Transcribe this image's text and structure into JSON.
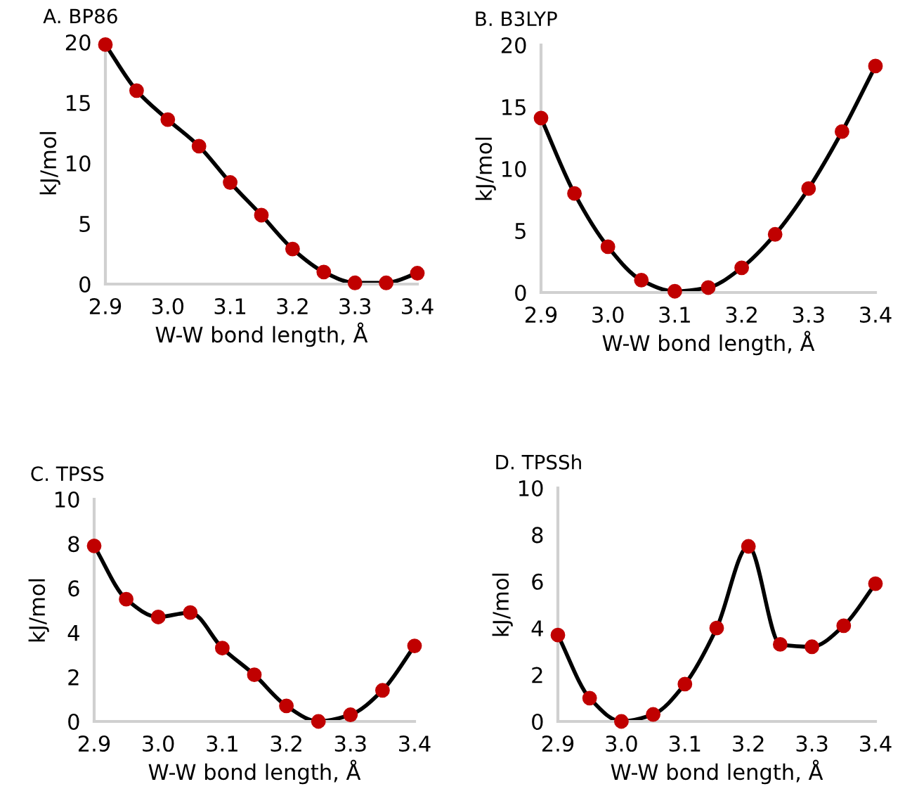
{
  "chart_data": [
    {
      "type": "line",
      "title": "A. BP86",
      "xlabel": "W-W bond length, Å",
      "ylabel": "kJ/mol",
      "x": [
        2.9,
        2.95,
        3.0,
        3.05,
        3.1,
        3.15,
        3.2,
        3.25,
        3.3,
        3.35,
        3.4
      ],
      "xlim": [
        2.9,
        3.4
      ],
      "xticks": [
        {
          "value": 2.9,
          "label": "2.9"
        },
        {
          "value": 3.0,
          "label": "3.0"
        },
        {
          "value": 3.1,
          "label": "3.1"
        },
        {
          "value": 3.2,
          "label": "3.2"
        },
        {
          "value": 3.3,
          "label": "3.3"
        },
        {
          "value": 3.4,
          "label": "3.4"
        }
      ],
      "ylim": [
        0,
        20
      ],
      "yticks": [
        0,
        5,
        10,
        15,
        20
      ],
      "marker": "circle",
      "grid": false,
      "legend": false,
      "series": [
        {
          "color": "#c00000",
          "values": [
            19.8,
            16.0,
            13.6,
            11.4,
            8.4,
            5.7,
            2.9,
            1.0,
            0.1,
            0.1,
            0.9
          ]
        }
      ]
    },
    {
      "type": "line",
      "title": "B. B3LYP",
      "xlabel": "W-W bond length, Å",
      "ylabel": "kJ/mol",
      "x": [
        2.9,
        2.95,
        3.0,
        3.05,
        3.1,
        3.15,
        3.2,
        3.25,
        3.3,
        3.35,
        3.4
      ],
      "xlim": [
        2.9,
        3.4
      ],
      "xticks": [
        {
          "value": 2.9,
          "label": "2.9"
        },
        {
          "value": 3.0,
          "label": "3.0"
        },
        {
          "value": 3.1,
          "label": "3.1"
        },
        {
          "value": 3.2,
          "label": "3.2"
        },
        {
          "value": 3.3,
          "label": "3.3"
        },
        {
          "value": 3.4,
          "label": "3.4"
        }
      ],
      "ylim": [
        0,
        20
      ],
      "yticks": [
        0,
        5,
        10,
        15,
        20
      ],
      "marker": "circle",
      "grid": false,
      "legend": false,
      "series": [
        {
          "color": "#c00000",
          "values": [
            14.1,
            8.0,
            3.7,
            1.0,
            0.1,
            0.4,
            2.0,
            4.7,
            8.4,
            13.0,
            18.3
          ]
        }
      ]
    },
    {
      "type": "line",
      "title": "C. TPSS",
      "xlabel": "W-W bond length, Å",
      "ylabel": "kJ/mol",
      "x": [
        2.9,
        2.95,
        3.0,
        3.05,
        3.1,
        3.15,
        3.2,
        3.25,
        3.3,
        3.35,
        3.4
      ],
      "xlim": [
        2.9,
        3.4
      ],
      "xticks": [
        {
          "value": 2.9,
          "label": "2.9"
        },
        {
          "value": 3.0,
          "label": "3.0"
        },
        {
          "value": 3.1,
          "label": "3.1"
        },
        {
          "value": 3.2,
          "label": "3.2"
        },
        {
          "value": 3.3,
          "label": "3.3"
        },
        {
          "value": 3.4,
          "label": "3.4"
        }
      ],
      "ylim": [
        0,
        10
      ],
      "yticks": [
        0,
        2,
        4,
        6,
        8,
        10
      ],
      "marker": "circle",
      "grid": false,
      "legend": false,
      "series": [
        {
          "color": "#c00000",
          "values": [
            7.9,
            5.5,
            4.7,
            4.9,
            3.3,
            2.1,
            0.7,
            0.0,
            0.3,
            1.4,
            3.4
          ]
        }
      ]
    },
    {
      "type": "line",
      "title": "D. TPSSh",
      "xlabel": "W-W bond length, Å",
      "ylabel": "kJ/mol",
      "x": [
        2.9,
        2.95,
        3.0,
        3.05,
        3.1,
        3.15,
        3.2,
        3.25,
        3.3,
        3.35,
        3.4
      ],
      "xlim": [
        2.9,
        3.4
      ],
      "xticks": [
        {
          "value": 2.9,
          "label": "2.9"
        },
        {
          "value": 3.0,
          "label": "3.0"
        },
        {
          "value": 3.1,
          "label": "3.1"
        },
        {
          "value": 3.2,
          "label": "3.2"
        },
        {
          "value": 3.3,
          "label": "3.3"
        },
        {
          "value": 3.4,
          "label": "3.4"
        }
      ],
      "ylim": [
        0,
        10
      ],
      "yticks": [
        0,
        2,
        4,
        6,
        8,
        10
      ],
      "marker": "circle",
      "grid": false,
      "legend": false,
      "series": [
        {
          "color": "#c00000",
          "values": [
            3.7,
            1.0,
            0.0,
            0.3,
            1.6,
            4.0,
            7.5,
            3.3,
            3.2,
            4.1,
            5.9
          ]
        }
      ]
    }
  ]
}
